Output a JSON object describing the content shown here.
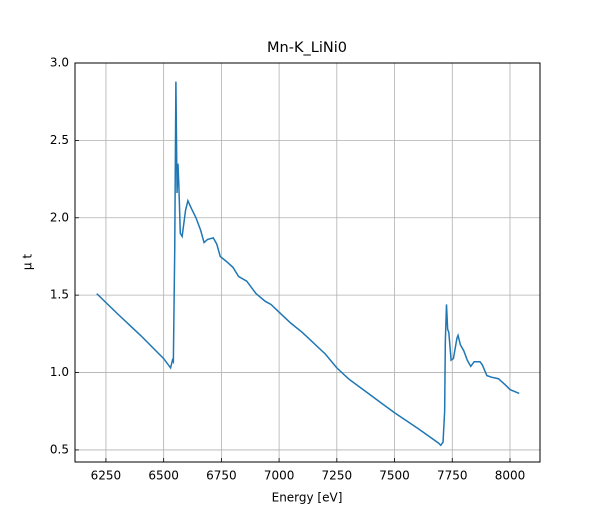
{
  "chart_data": {
    "type": "line",
    "title": "Mn-K_LiNi0",
    "xlabel": "Energy [eV]",
    "ylabel": "μ t",
    "x": [
      6210,
      6300,
      6400,
      6500,
      6530,
      6538,
      6542,
      6548,
      6553,
      6558,
      6562,
      6566,
      6572,
      6580,
      6595,
      6605,
      6620,
      6640,
      6660,
      6675,
      6690,
      6715,
      6730,
      6745,
      6770,
      6800,
      6825,
      6860,
      6900,
      6940,
      6965,
      7000,
      7050,
      7100,
      7200,
      7250,
      7300,
      7400,
      7500,
      7600,
      7690,
      7700,
      7710,
      7717,
      7720,
      7725,
      7730,
      7735,
      7745,
      7755,
      7770,
      7775,
      7785,
      7800,
      7815,
      7830,
      7845,
      7870,
      7880,
      7900,
      7920,
      7950,
      7980,
      8000,
      8040
    ],
    "series": [
      {
        "name": "Mn-K_LiNi0",
        "color": "#1f77b4",
        "values": [
          1.51,
          1.38,
          1.24,
          1.09,
          1.03,
          1.08,
          1.07,
          1.8,
          2.88,
          2.16,
          2.35,
          2.2,
          1.9,
          1.88,
          2.05,
          2.11,
          2.06,
          2.0,
          1.92,
          1.84,
          1.86,
          1.87,
          1.83,
          1.75,
          1.72,
          1.68,
          1.62,
          1.59,
          1.51,
          1.46,
          1.44,
          1.39,
          1.32,
          1.26,
          1.12,
          1.03,
          0.96,
          0.85,
          0.74,
          0.64,
          0.545,
          0.53,
          0.55,
          0.75,
          1.2,
          1.44,
          1.28,
          1.26,
          1.08,
          1.09,
          1.22,
          1.24,
          1.18,
          1.14,
          1.08,
          1.04,
          1.07,
          1.07,
          1.05,
          0.98,
          0.97,
          0.96,
          0.92,
          0.89,
          0.865
        ]
      }
    ],
    "xlim": [
      6116,
      8130
    ],
    "ylim": [
      0.422,
      3.0
    ],
    "xticks": [
      6250,
      6500,
      6750,
      7000,
      7250,
      7500,
      7750,
      8000
    ],
    "yticks": [
      0.5,
      {
        "value": 1.0,
        "label": "1.0"
      },
      1.5,
      {
        "value": 2.0,
        "label": "2.0"
      },
      2.5,
      {
        "value": 3.0,
        "label": "3.0"
      }
    ],
    "grid": true
  }
}
